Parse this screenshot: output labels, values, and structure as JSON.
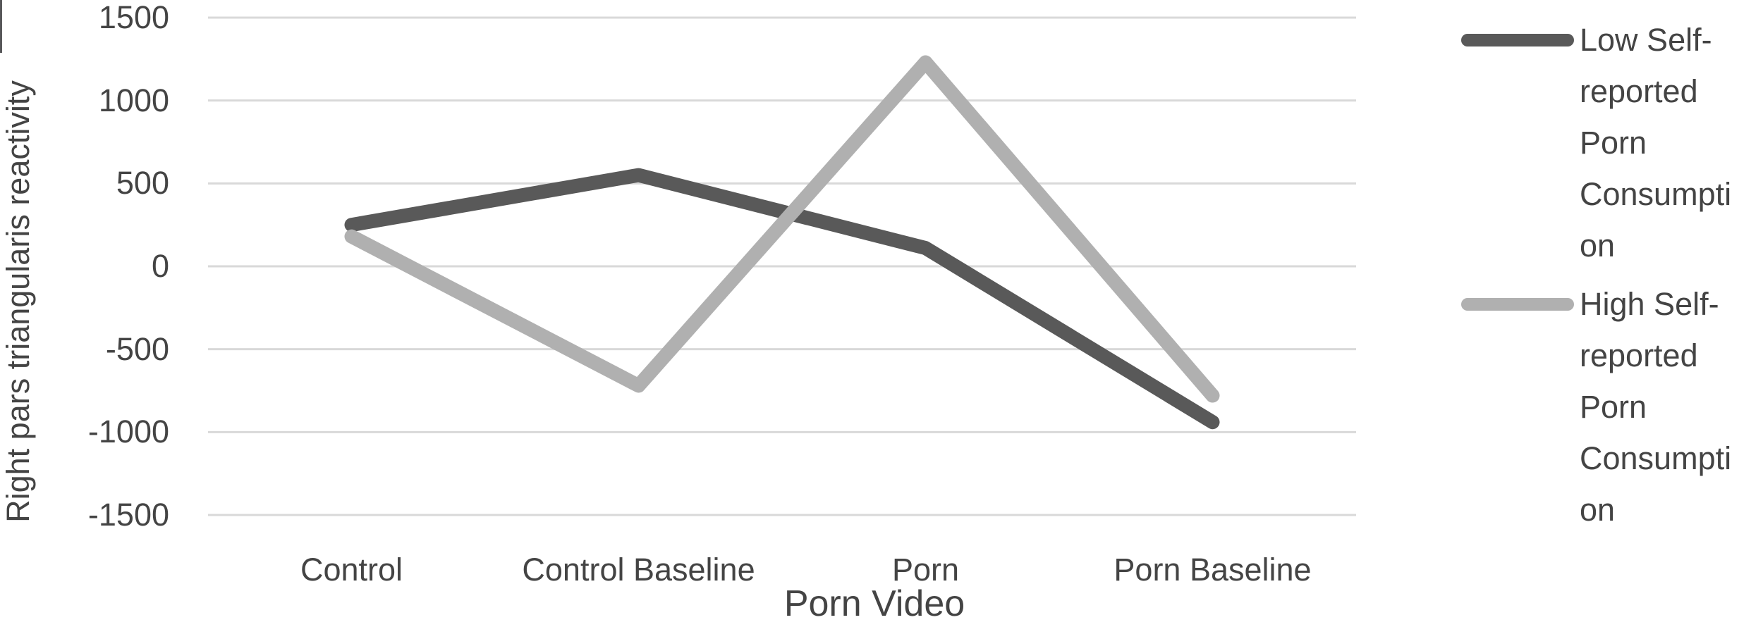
{
  "chart_data": {
    "type": "line",
    "title": "",
    "xlabel": "Porn Video",
    "ylabel": "Right pars triangularis reactivity",
    "categories": [
      "Control",
      "Control Baseline",
      "Porn",
      "Porn Baseline"
    ],
    "series": [
      {
        "name": "Low Self-reported Porn Consumption",
        "color": "#595959",
        "values": [
          250,
          550,
          110,
          -940
        ]
      },
      {
        "name": "High Self-reported Porn Consumption",
        "color": "#b0b0b0",
        "values": [
          180,
          -720,
          1230,
          -780
        ]
      }
    ],
    "ylim": [
      -1500,
      1500
    ],
    "yticks": [
      1500,
      1000,
      500,
      0,
      -500,
      -1000,
      -1500
    ],
    "grid": true,
    "legend_position": "right"
  },
  "legend": {
    "items": [
      {
        "label": "Low Self-reported Porn Consumption",
        "lines": [
          "Low Self-",
          "reported",
          "Porn",
          "Consumpti",
          "on"
        ],
        "color": "#595959"
      },
      {
        "label": "High Self-reported Porn Consumption",
        "lines": [
          "High Self-",
          "reported",
          "Porn",
          "Consumpti",
          "on"
        ],
        "color": "#b0b0b0"
      }
    ]
  },
  "colors": {
    "background": "#ffffff",
    "gridline": "#d9d9d9",
    "text": "#444444",
    "series_low": "#595959",
    "series_high": "#b0b0b0"
  }
}
